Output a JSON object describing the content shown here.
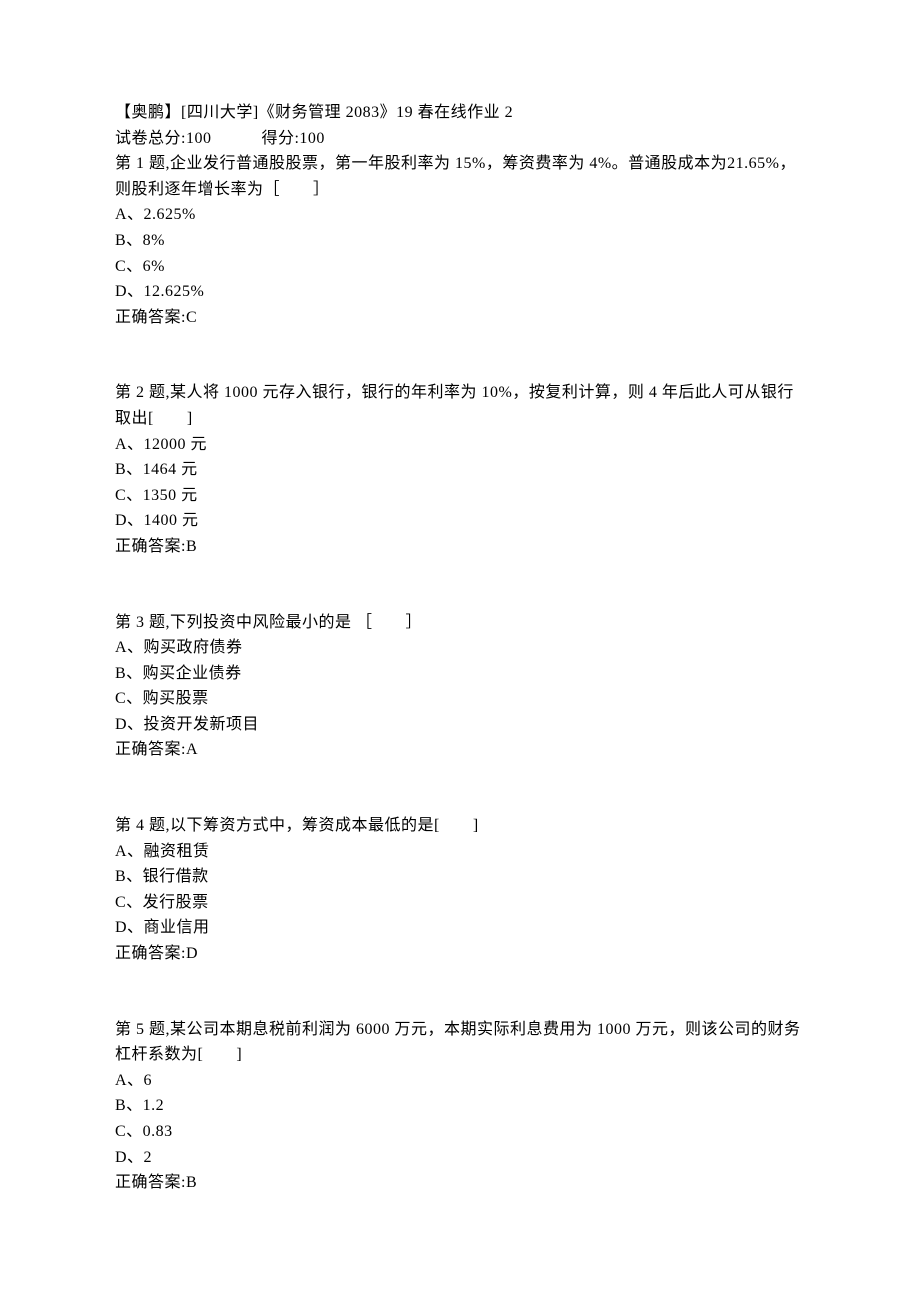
{
  "header": {
    "title": "【奥鹏】[四川大学]《财务管理 2083》19 春在线作业 2",
    "total_score_label": "试卷总分:100",
    "score_label": "得分:100"
  },
  "questions": [
    {
      "prompt": "第 1 题,企业发行普通股股票，第一年股利率为 15%，筹资费率为 4%。普通股成本为21.65%，则股利逐年增长率为［　　］",
      "options": [
        "A、2.625%",
        "B、8%",
        "C、6%",
        "D、12.625%"
      ],
      "answer": "正确答案:C"
    },
    {
      "prompt": "第 2 题,某人将 1000 元存入银行，银行的年利率为 10%，按复利计算，则 4 年后此人可从银行取出[　　]",
      "options": [
        "A、12000 元",
        "B、1464 元",
        "C、1350 元",
        "D、1400 元"
      ],
      "answer": "正确答案:B"
    },
    {
      "prompt": "第 3 题,下列投资中风险最小的是 ［　　］",
      "options": [
        "A、购买政府债券",
        "B、购买企业债券",
        "C、购买股票",
        "D、投资开发新项目"
      ],
      "answer": "正确答案:A"
    },
    {
      "prompt": "第 4 题,以下筹资方式中，筹资成本最低的是[　　]",
      "options": [
        "A、融资租赁",
        "B、银行借款",
        "C、发行股票",
        "D、商业信用"
      ],
      "answer": "正确答案:D"
    },
    {
      "prompt": "第 5 题,某公司本期息税前利润为 6000 万元，本期实际利息费用为 1000 万元，则该公司的财务杠杆系数为[　　]",
      "options": [
        "A、6",
        "B、1.2",
        "C、0.83",
        "D、2"
      ],
      "answer": "正确答案:B"
    }
  ]
}
